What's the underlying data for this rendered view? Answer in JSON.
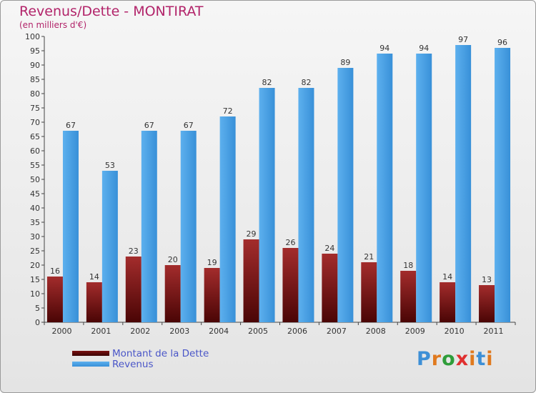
{
  "title": "Revenus/Dette - MONTIRAT",
  "subtitle": "(en milliers d'€)",
  "colors": {
    "title": "#b2246a",
    "dette_top": "#a32c2c",
    "dette_bottom": "#4a0505",
    "revenus_top": "#5db0ee",
    "revenus_bottom": "#3890d8",
    "legend_text": "#4a56c8"
  },
  "chart_data": {
    "type": "bar",
    "categories": [
      "2000",
      "2001",
      "2002",
      "2003",
      "2004",
      "2005",
      "2006",
      "2007",
      "2008",
      "2009",
      "2010",
      "2011"
    ],
    "series": [
      {
        "name": "Montant de la Dette",
        "values": [
          16,
          14,
          23,
          20,
          19,
          29,
          26,
          24,
          21,
          18,
          14,
          13
        ]
      },
      {
        "name": "Revenus",
        "values": [
          67,
          53,
          67,
          67,
          72,
          82,
          82,
          89,
          94,
          94,
          97,
          96
        ]
      }
    ],
    "ylim": [
      0,
      100
    ],
    "ytick_step": 5,
    "grid": false,
    "legend_position": "bottom-left"
  },
  "legend": [
    {
      "label": "Montant de la Dette",
      "color_key": "dette"
    },
    {
      "label": "Revenus",
      "color_key": "revenus"
    }
  ],
  "logo": {
    "letters": [
      "P",
      "r",
      "o",
      "x",
      "i",
      "t",
      "i"
    ],
    "colors": [
      "#3d8fd6",
      "#e07a1f",
      "#2f9d3a",
      "#e03030",
      "#e07a1f",
      "#3d8fd6",
      "#e07a1f"
    ]
  }
}
